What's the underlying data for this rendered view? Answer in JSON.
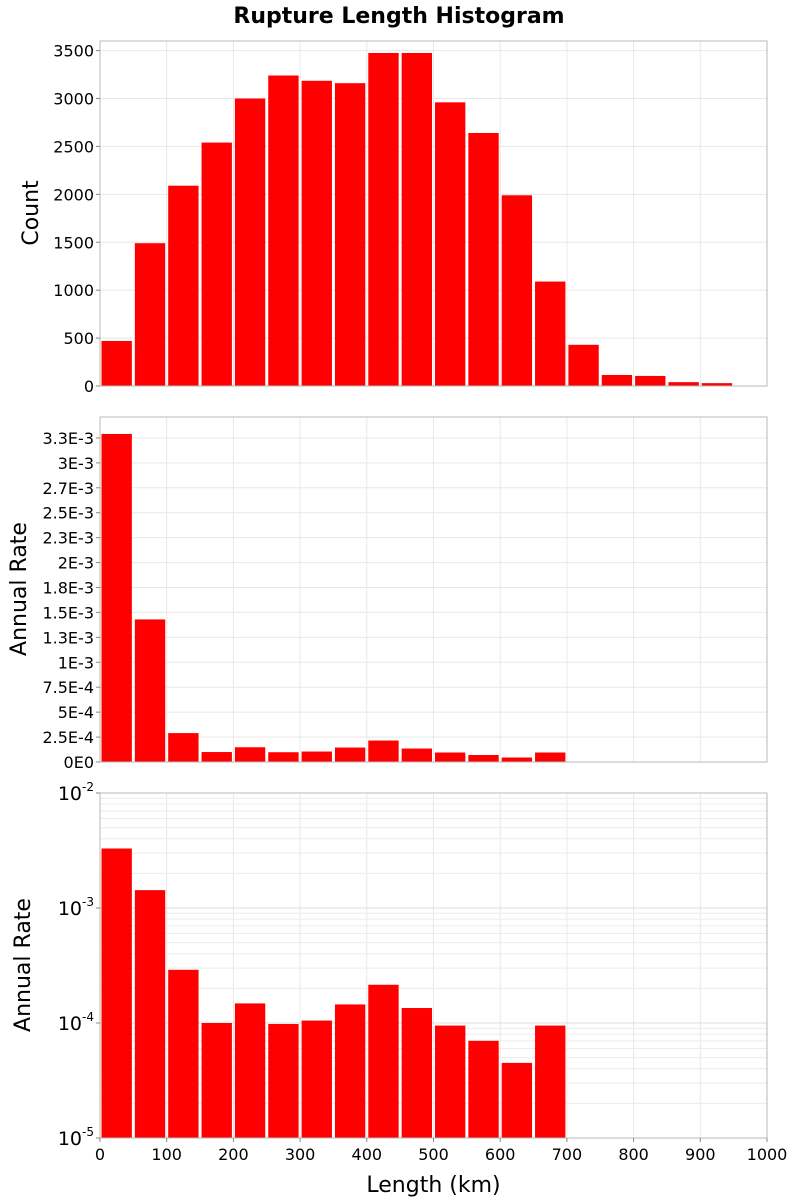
{
  "page_title": "Rupture Length Histogram",
  "chart_data": [
    {
      "type": "bar",
      "id": "count",
      "title": "Rupture Length Histogram",
      "ylabel": "Count",
      "xlabel": "",
      "xlim": [
        0,
        1000
      ],
      "ylim": [
        0,
        3600
      ],
      "bin_width": 50,
      "x": [
        25,
        75,
        125,
        175,
        225,
        275,
        325,
        375,
        425,
        475,
        525,
        575,
        625,
        675,
        725,
        775,
        825,
        875,
        925,
        975
      ],
      "values": [
        470,
        1490,
        2090,
        2540,
        3000,
        3240,
        3185,
        3160,
        3475,
        3475,
        2960,
        2640,
        1990,
        1090,
        430,
        115,
        105,
        40,
        30,
        5
      ],
      "yticks": [
        0,
        500,
        1000,
        1500,
        2000,
        2500,
        3000,
        3500
      ],
      "ytick_labels": [
        "0",
        "500",
        "1000",
        "1500",
        "2000",
        "2500",
        "3000",
        "3500"
      ],
      "color": "#ff0000"
    },
    {
      "type": "bar",
      "id": "rate-linear",
      "ylabel": "Annual Rate",
      "xlabel": "",
      "xlim": [
        0,
        1000
      ],
      "ylim": [
        0,
        0.00346
      ],
      "bin_width": 50,
      "x": [
        25,
        75,
        125,
        175,
        225,
        275,
        325,
        375,
        425,
        475,
        525,
        575,
        625,
        675
      ],
      "values": [
        0.00329,
        0.00143,
        0.00029,
        0.0001,
        0.000148,
        9.8e-05,
        0.000105,
        0.000145,
        0.000215,
        0.000135,
        9.5e-05,
        7e-05,
        4.5e-05,
        9.5e-05
      ],
      "yticks": [
        0,
        0.00025,
        0.0005,
        0.00075,
        0.001,
        0.00125,
        0.0015,
        0.00175,
        0.002,
        0.00225,
        0.0025,
        0.00275,
        0.003,
        0.00325
      ],
      "ytick_labels": [
        "0E0",
        "2.5E-4",
        "5E-4",
        "7.5E-4",
        "1E-3",
        "1.3E-3",
        "1.5E-3",
        "1.8E-3",
        "2E-3",
        "2.3E-3",
        "2.5E-3",
        "2.7E-3",
        "3E-3",
        "3.3E-3"
      ],
      "color": "#ff0000"
    },
    {
      "type": "bar",
      "id": "rate-log",
      "ylabel": "Annual Rate",
      "xlabel": "Length (km)",
      "xlim": [
        0,
        1000
      ],
      "ylim": [
        1e-05,
        0.01
      ],
      "yscale": "log",
      "bin_width": 50,
      "x": [
        25,
        75,
        125,
        175,
        225,
        275,
        325,
        375,
        425,
        475,
        525,
        575,
        625,
        675
      ],
      "values": [
        0.00329,
        0.00143,
        0.00029,
        0.0001,
        0.000148,
        9.8e-05,
        0.000105,
        0.000145,
        0.000215,
        0.000135,
        9.5e-05,
        7e-05,
        4.5e-05,
        9.5e-05
      ],
      "yticks": [
        1e-05,
        0.0001,
        0.001,
        0.01
      ],
      "ytick_labels": [
        {
          "base": "10",
          "exp": "-5"
        },
        {
          "base": "10",
          "exp": "-4"
        },
        {
          "base": "10",
          "exp": "-3"
        },
        {
          "base": "10",
          "exp": "-2"
        }
      ],
      "xticks": [
        0,
        100,
        200,
        300,
        400,
        500,
        600,
        700,
        800,
        900,
        1000
      ],
      "xtick_labels": [
        "0",
        "100",
        "200",
        "300",
        "400",
        "500",
        "600",
        "700",
        "800",
        "900",
        "1000"
      ],
      "color": "#ff0000"
    }
  ]
}
